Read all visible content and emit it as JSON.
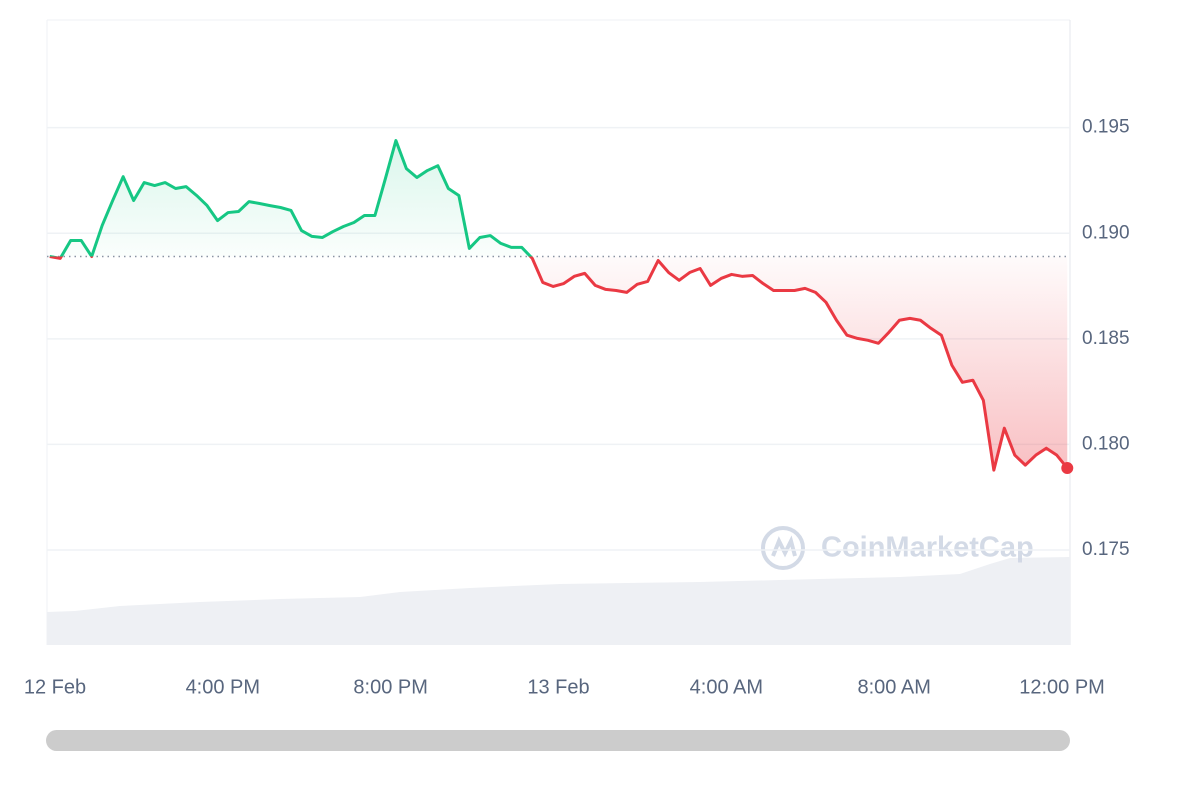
{
  "chart_data": {
    "type": "line",
    "x": [
      -0.125,
      0.125,
      0.375,
      0.625,
      0.875,
      1.125,
      1.375,
      1.625,
      1.875,
      2.125,
      2.375,
      2.625,
      2.875,
      3.125,
      3.375,
      3.625,
      3.875,
      4.125,
      4.375,
      4.625,
      4.875,
      5.125,
      5.375,
      5.625,
      5.875,
      6.125,
      6.375,
      6.625,
      6.875,
      7.125,
      7.375,
      7.625,
      7.875,
      8.125,
      8.375,
      8.625,
      8.875,
      9.125,
      9.375,
      9.625,
      9.875,
      10.125,
      10.375,
      10.625,
      10.875,
      11.125,
      11.375,
      11.625,
      11.875,
      12.125,
      12.375,
      12.625,
      12.875,
      13.125,
      13.375,
      13.625,
      13.875,
      14.125,
      14.375,
      14.625,
      14.875,
      15.125,
      15.375,
      15.625,
      15.875,
      16.125,
      16.375,
      16.625,
      16.875,
      17.125,
      17.375,
      17.625,
      17.875,
      18.125,
      18.375,
      18.625,
      18.875,
      19.125,
      19.375,
      19.625,
      19.875,
      20.125,
      20.375,
      20.625,
      20.875,
      21.125,
      21.375,
      21.625,
      21.875,
      22.125,
      22.375,
      22.625,
      22.875,
      23.125,
      23.375,
      23.625,
      23.875,
      24.125
    ],
    "values": [
      0.1889,
      0.18881,
      0.18966,
      0.18966,
      0.1889,
      0.19037,
      0.19155,
      0.19268,
      0.19155,
      0.1924,
      0.19226,
      0.1924,
      0.19212,
      0.19221,
      0.19179,
      0.19131,
      0.1906,
      0.19098,
      0.19103,
      0.1915,
      0.19141,
      0.19131,
      0.19122,
      0.19108,
      0.19013,
      0.18985,
      0.1898,
      0.19008,
      0.19032,
      0.19051,
      0.19084,
      0.19084,
      0.19259,
      0.19439,
      0.19306,
      0.19264,
      0.19297,
      0.1932,
      0.19212,
      0.19179,
      0.18928,
      0.1898,
      0.18989,
      0.18952,
      0.18933,
      0.18933,
      0.18881,
      0.18767,
      0.18748,
      0.18762,
      0.18796,
      0.1881,
      0.18753,
      0.18734,
      0.18729,
      0.1872,
      0.18758,
      0.18772,
      0.18871,
      0.18814,
      0.18777,
      0.18814,
      0.18833,
      0.18753,
      0.18786,
      0.18805,
      0.18796,
      0.188,
      0.18762,
      0.18729,
      0.18729,
      0.18729,
      0.18739,
      0.1872,
      0.18673,
      0.18588,
      0.18517,
      0.18502,
      0.18493,
      0.18479,
      0.18531,
      0.18588,
      0.18597,
      0.18588,
      0.1855,
      0.18517,
      0.18375,
      0.18294,
      0.18304,
      0.18209,
      0.17878,
      0.18077,
      0.17949,
      0.17902,
      0.17949,
      0.17982,
      0.17949,
      0.17888
    ],
    "baseline": 0.1889,
    "up_color": "#16c784",
    "down_color": "#ea3943",
    "xlim": [
      -0.19,
      24.19
    ],
    "xticks": [
      {
        "value": 0,
        "label": "12 Feb"
      },
      {
        "value": 4,
        "label": "4:00 PM"
      },
      {
        "value": 8,
        "label": "8:00 PM"
      },
      {
        "value": 12,
        "label": "13 Feb"
      },
      {
        "value": 16,
        "label": "4:00 AM"
      },
      {
        "value": 20,
        "label": "8:00 AM"
      },
      {
        "value": 24,
        "label": "12:00 PM"
      }
    ],
    "ylim": [
      0.1705,
      0.2001
    ],
    "yticks": [
      0.175,
      {
        "value": 0.18,
        "label": "0.180"
      },
      0.185,
      {
        "value": 0.19,
        "label": "0.190"
      },
      0.195
    ],
    "grid": true,
    "watermark": "CoinMarketCap"
  }
}
